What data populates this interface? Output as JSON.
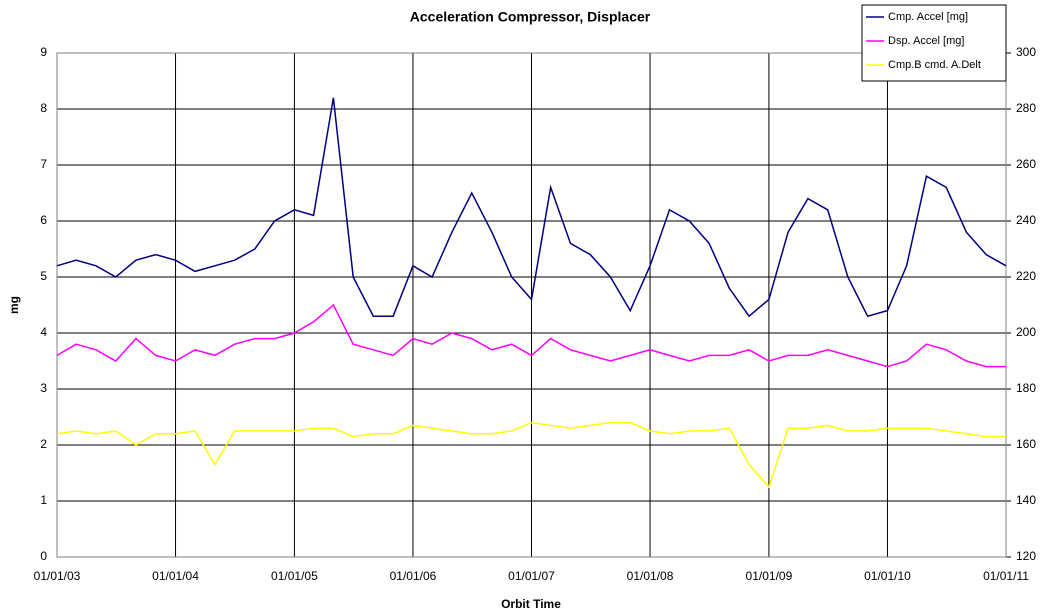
{
  "chart_data": {
    "type": "line",
    "title": "Acceleration Compressor, Displacer",
    "x_label": "Orbit Time",
    "y_label": "mg",
    "x": [
      "2003-01-01",
      "2003-03-01",
      "2003-05-01",
      "2003-07-01",
      "2003-09-01",
      "2003-11-01",
      "2004-01-01",
      "2004-03-01",
      "2004-05-01",
      "2004-07-01",
      "2004-09-01",
      "2004-11-01",
      "2005-01-01",
      "2005-03-01",
      "2005-05-01",
      "2005-07-01",
      "2005-09-01",
      "2005-11-01",
      "2006-01-01",
      "2006-03-01",
      "2006-05-01",
      "2006-07-01",
      "2006-09-01",
      "2006-11-01",
      "2007-01-01",
      "2007-03-01",
      "2007-05-01",
      "2007-07-01",
      "2007-09-01",
      "2007-11-01",
      "2008-01-01",
      "2008-03-01",
      "2008-05-01",
      "2008-07-01",
      "2008-09-01",
      "2008-11-01",
      "2009-01-01",
      "2009-03-01",
      "2009-05-01",
      "2009-07-01",
      "2009-09-01",
      "2009-11-01",
      "2010-01-01",
      "2010-03-01",
      "2010-05-01",
      "2010-07-01",
      "2010-09-01",
      "2010-11-01",
      "2011-01-01"
    ],
    "xlim": [
      "2003-01-01",
      "2011-01-01"
    ],
    "xticks": [
      {
        "value": "2003-01-01",
        "label": "01/01/03"
      },
      {
        "value": "2004-01-01",
        "label": "01/01/04"
      },
      {
        "value": "2005-01-01",
        "label": "01/01/05"
      },
      {
        "value": "2006-01-01",
        "label": "01/01/06"
      },
      {
        "value": "2007-01-01",
        "label": "01/01/07"
      },
      {
        "value": "2008-01-01",
        "label": "01/01/08"
      },
      {
        "value": "2009-01-01",
        "label": "01/01/09"
      },
      {
        "value": "2010-01-01",
        "label": "01/01/10"
      },
      {
        "value": "2011-01-01",
        "label": "01/01/11"
      }
    ],
    "ylim": [
      0,
      9
    ],
    "yticks": [
      0,
      1,
      2,
      3,
      4,
      5,
      6,
      7,
      8,
      9
    ],
    "y2lim": [
      120,
      300
    ],
    "y2ticks": [
      120,
      140,
      160,
      180,
      200,
      220,
      240,
      260,
      280,
      300
    ],
    "grid": true,
    "legend": "top-right",
    "series": [
      {
        "name": "Cmp. Accel [mg]",
        "color": "#000080",
        "values": [
          5.2,
          5.3,
          5.2,
          5.0,
          5.3,
          5.4,
          5.3,
          5.1,
          5.2,
          5.3,
          5.5,
          6.0,
          6.2,
          6.1,
          8.2,
          5.0,
          4.3,
          4.3,
          5.2,
          5.0,
          5.8,
          6.5,
          5.8,
          5.0,
          4.6,
          6.6,
          5.6,
          5.4,
          5.0,
          4.4,
          5.2,
          6.2,
          6.0,
          5.6,
          4.8,
          4.3,
          4.6,
          5.8,
          6.4,
          6.2,
          5.0,
          4.3,
          4.4,
          5.2,
          6.8,
          6.6,
          5.8,
          5.4,
          5.2
        ]
      },
      {
        "name": "Dsp. Accel [mg]",
        "color": "#ff00ff",
        "values": [
          3.6,
          3.8,
          3.7,
          3.5,
          3.9,
          3.6,
          3.5,
          3.7,
          3.6,
          3.8,
          3.9,
          3.9,
          4.0,
          4.2,
          4.5,
          3.8,
          3.7,
          3.6,
          3.9,
          3.8,
          4.0,
          3.9,
          3.7,
          3.8,
          3.6,
          3.9,
          3.7,
          3.6,
          3.5,
          3.6,
          3.7,
          3.6,
          3.5,
          3.6,
          3.6,
          3.7,
          3.5,
          3.6,
          3.6,
          3.7,
          3.6,
          3.5,
          3.4,
          3.5,
          3.8,
          3.7,
          3.5,
          3.4,
          3.4
        ]
      },
      {
        "name": "Cmp.B cmd. A.Delt",
        "color": "#ffff00",
        "axis": "y2",
        "values": [
          164,
          165,
          164,
          165,
          160,
          164,
          164,
          165,
          153,
          165,
          165,
          165,
          165,
          166,
          166,
          163,
          164,
          164,
          167,
          166,
          165,
          164,
          164,
          165,
          168,
          167,
          166,
          167,
          168,
          168,
          165,
          164,
          165,
          165,
          166,
          153,
          145,
          166,
          166,
          167,
          165,
          165,
          166,
          166,
          166,
          165,
          164,
          163,
          163
        ]
      }
    ]
  }
}
